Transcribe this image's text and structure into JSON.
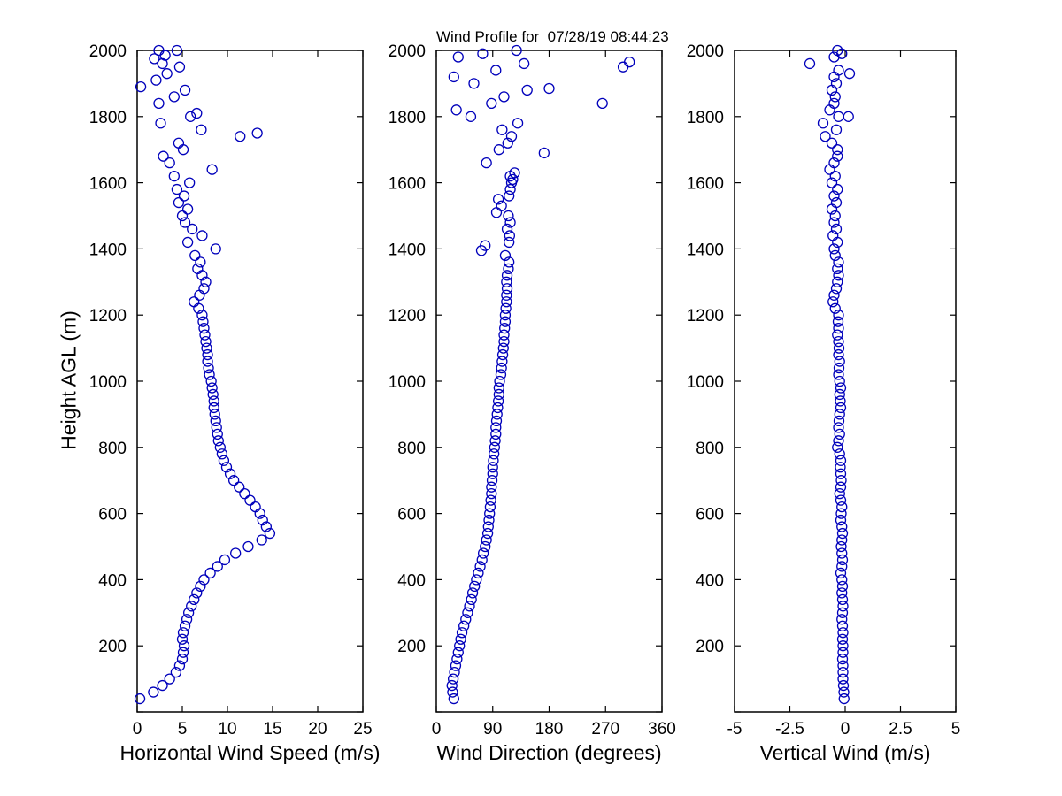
{
  "figure": {
    "title": "Wind Profile for  07/28/19 08:44:23"
  },
  "chart_data": [
    {
      "type": "scatter",
      "title": "",
      "xlabel": "Horizontal Wind Speed (m/s)",
      "ylabel": "Height AGL (m)",
      "xlim": [
        0,
        25
      ],
      "xticks": [
        0,
        5,
        10,
        15,
        20,
        25
      ],
      "ylim": [
        0,
        2000
      ],
      "yticks": [
        0,
        200,
        400,
        600,
        800,
        1000,
        1200,
        1400,
        1600,
        1800,
        2000
      ],
      "grid": false,
      "legend": null,
      "marker": "open-circle",
      "marker_color": "#0000BB",
      "points": [
        [
          0.3,
          40
        ],
        [
          1.8,
          60
        ],
        [
          2.8,
          80
        ],
        [
          3.6,
          100
        ],
        [
          4.3,
          120
        ],
        [
          4.7,
          140
        ],
        [
          5.0,
          160
        ],
        [
          5.1,
          180
        ],
        [
          5.2,
          200
        ],
        [
          5.0,
          220
        ],
        [
          5.1,
          240
        ],
        [
          5.3,
          260
        ],
        [
          5.5,
          280
        ],
        [
          5.7,
          300
        ],
        [
          6.0,
          320
        ],
        [
          6.3,
          340
        ],
        [
          6.6,
          360
        ],
        [
          7.0,
          380
        ],
        [
          7.4,
          400
        ],
        [
          8.1,
          420
        ],
        [
          8.9,
          440
        ],
        [
          9.7,
          460
        ],
        [
          10.9,
          480
        ],
        [
          12.3,
          500
        ],
        [
          13.8,
          520
        ],
        [
          14.7,
          540
        ],
        [
          14.3,
          560
        ],
        [
          13.9,
          580
        ],
        [
          13.6,
          600
        ],
        [
          13.1,
          620
        ],
        [
          12.5,
          640
        ],
        [
          11.9,
          660
        ],
        [
          11.3,
          680
        ],
        [
          10.7,
          700
        ],
        [
          10.3,
          720
        ],
        [
          9.9,
          740
        ],
        [
          9.6,
          760
        ],
        [
          9.4,
          780
        ],
        [
          9.2,
          800
        ],
        [
          9.0,
          820
        ],
        [
          8.9,
          840
        ],
        [
          8.8,
          860
        ],
        [
          8.7,
          880
        ],
        [
          8.6,
          900
        ],
        [
          8.5,
          920
        ],
        [
          8.5,
          940
        ],
        [
          8.4,
          960
        ],
        [
          8.3,
          980
        ],
        [
          8.2,
          1000
        ],
        [
          8.0,
          1020
        ],
        [
          7.9,
          1040
        ],
        [
          7.8,
          1060
        ],
        [
          7.8,
          1080
        ],
        [
          7.7,
          1100
        ],
        [
          7.6,
          1120
        ],
        [
          7.5,
          1140
        ],
        [
          7.4,
          1160
        ],
        [
          7.3,
          1180
        ],
        [
          7.2,
          1200
        ],
        [
          6.8,
          1220
        ],
        [
          6.3,
          1240
        ],
        [
          6.9,
          1260
        ],
        [
          7.4,
          1280
        ],
        [
          7.6,
          1300
        ],
        [
          7.2,
          1320
        ],
        [
          6.7,
          1340
        ],
        [
          7.0,
          1360
        ],
        [
          6.4,
          1380
        ],
        [
          8.7,
          1400
        ],
        [
          5.6,
          1420
        ],
        [
          7.2,
          1440
        ],
        [
          6.1,
          1460
        ],
        [
          5.3,
          1480
        ],
        [
          5.0,
          1500
        ],
        [
          5.6,
          1520
        ],
        [
          4.6,
          1540
        ],
        [
          5.2,
          1560
        ],
        [
          4.4,
          1580
        ],
        [
          5.8,
          1600
        ],
        [
          4.1,
          1620
        ],
        [
          8.3,
          1640
        ],
        [
          3.6,
          1660
        ],
        [
          2.9,
          1680
        ],
        [
          5.1,
          1700
        ],
        [
          4.6,
          1720
        ],
        [
          11.4,
          1740
        ],
        [
          13.3,
          1750
        ],
        [
          7.1,
          1760
        ],
        [
          2.6,
          1780
        ],
        [
          5.9,
          1800
        ],
        [
          6.6,
          1810
        ],
        [
          2.4,
          1840
        ],
        [
          4.1,
          1860
        ],
        [
          5.3,
          1880
        ],
        [
          0.4,
          1890
        ],
        [
          2.1,
          1910
        ],
        [
          3.3,
          1930
        ],
        [
          4.7,
          1950
        ],
        [
          2.8,
          1960
        ],
        [
          1.9,
          1975
        ],
        [
          3.1,
          1985
        ],
        [
          4.4,
          2000
        ],
        [
          2.4,
          2000
        ]
      ]
    },
    {
      "type": "scatter",
      "title": "",
      "xlabel": "Wind Direction (degrees)",
      "ylabel": "",
      "xlim": [
        0,
        360
      ],
      "xticks": [
        0,
        90,
        180,
        270,
        360
      ],
      "ylim": [
        0,
        2000
      ],
      "yticks": [
        0,
        200,
        400,
        600,
        800,
        1000,
        1200,
        1400,
        1600,
        1800,
        2000
      ],
      "grid": false,
      "legend": null,
      "marker": "open-circle",
      "marker_color": "#0000BB",
      "points": [
        [
          28,
          40
        ],
        [
          26,
          60
        ],
        [
          25,
          80
        ],
        [
          27,
          100
        ],
        [
          29,
          120
        ],
        [
          31,
          140
        ],
        [
          33,
          160
        ],
        [
          35,
          180
        ],
        [
          37,
          200
        ],
        [
          39,
          220
        ],
        [
          41,
          240
        ],
        [
          44,
          260
        ],
        [
          47,
          280
        ],
        [
          50,
          300
        ],
        [
          53,
          320
        ],
        [
          56,
          340
        ],
        [
          58,
          360
        ],
        [
          61,
          380
        ],
        [
          64,
          400
        ],
        [
          67,
          420
        ],
        [
          70,
          440
        ],
        [
          73,
          460
        ],
        [
          75,
          480
        ],
        [
          78,
          500
        ],
        [
          80,
          520
        ],
        [
          82,
          540
        ],
        [
          83,
          560
        ],
        [
          84,
          580
        ],
        [
          85,
          600
        ],
        [
          86,
          620
        ],
        [
          87,
          640
        ],
        [
          88,
          660
        ],
        [
          88,
          680
        ],
        [
          89,
          700
        ],
        [
          90,
          720
        ],
        [
          90,
          740
        ],
        [
          91,
          760
        ],
        [
          92,
          780
        ],
        [
          93,
          800
        ],
        [
          94,
          820
        ],
        [
          95,
          840
        ],
        [
          95,
          860
        ],
        [
          96,
          880
        ],
        [
          97,
          900
        ],
        [
          98,
          920
        ],
        [
          99,
          940
        ],
        [
          100,
          960
        ],
        [
          100,
          980
        ],
        [
          101,
          1000
        ],
        [
          103,
          1020
        ],
        [
          104,
          1040
        ],
        [
          105,
          1060
        ],
        [
          106,
          1080
        ],
        [
          107,
          1100
        ],
        [
          108,
          1120
        ],
        [
          108,
          1140
        ],
        [
          109,
          1160
        ],
        [
          110,
          1180
        ],
        [
          110,
          1200
        ],
        [
          111,
          1220
        ],
        [
          112,
          1240
        ],
        [
          112,
          1260
        ],
        [
          113,
          1280
        ],
        [
          112,
          1300
        ],
        [
          113,
          1320
        ],
        [
          115,
          1340
        ],
        [
          116,
          1360
        ],
        [
          110,
          1380
        ],
        [
          72,
          1395
        ],
        [
          78,
          1410
        ],
        [
          116,
          1420
        ],
        [
          117,
          1440
        ],
        [
          113,
          1460
        ],
        [
          118,
          1480
        ],
        [
          115,
          1500
        ],
        [
          96,
          1510
        ],
        [
          104,
          1530
        ],
        [
          99,
          1550
        ],
        [
          116,
          1560
        ],
        [
          118,
          1580
        ],
        [
          120,
          1600
        ],
        [
          122,
          1610
        ],
        [
          118,
          1620
        ],
        [
          125,
          1630
        ],
        [
          80,
          1660
        ],
        [
          172,
          1690
        ],
        [
          100,
          1700
        ],
        [
          114,
          1720
        ],
        [
          120,
          1740
        ],
        [
          105,
          1760
        ],
        [
          130,
          1780
        ],
        [
          55,
          1800
        ],
        [
          32,
          1820
        ],
        [
          88,
          1840
        ],
        [
          265,
          1840
        ],
        [
          108,
          1860
        ],
        [
          145,
          1880
        ],
        [
          180,
          1885
        ],
        [
          60,
          1900
        ],
        [
          28,
          1920
        ],
        [
          95,
          1940
        ],
        [
          298,
          1950
        ],
        [
          140,
          1960
        ],
        [
          308,
          1965
        ],
        [
          35,
          1980
        ],
        [
          74,
          1990
        ],
        [
          128,
          2000
        ]
      ]
    },
    {
      "type": "scatter",
      "title": "",
      "xlabel": "Vertical Wind (m/s)",
      "ylabel": "",
      "xlim": [
        -5,
        5
      ],
      "xticks": [
        -5,
        -2.5,
        0,
        2.5,
        5
      ],
      "ylim": [
        0,
        2000
      ],
      "yticks": [
        0,
        200,
        400,
        600,
        800,
        1000,
        1200,
        1400,
        1600,
        1800,
        2000
      ],
      "grid": false,
      "legend": null,
      "marker": "open-circle",
      "marker_color": "#0000BB",
      "points": [
        [
          -0.05,
          40
        ],
        [
          -0.06,
          60
        ],
        [
          -0.08,
          80
        ],
        [
          -0.1,
          100
        ],
        [
          -0.1,
          120
        ],
        [
          -0.1,
          140
        ],
        [
          -0.12,
          160
        ],
        [
          -0.1,
          180
        ],
        [
          -0.1,
          200
        ],
        [
          -0.12,
          220
        ],
        [
          -0.1,
          240
        ],
        [
          -0.12,
          260
        ],
        [
          -0.15,
          280
        ],
        [
          -0.12,
          300
        ],
        [
          -0.1,
          320
        ],
        [
          -0.12,
          340
        ],
        [
          -0.15,
          360
        ],
        [
          -0.12,
          380
        ],
        [
          -0.15,
          400
        ],
        [
          -0.2,
          420
        ],
        [
          -0.15,
          440
        ],
        [
          -0.12,
          460
        ],
        [
          -0.15,
          480
        ],
        [
          -0.18,
          500
        ],
        [
          -0.15,
          520
        ],
        [
          -0.12,
          540
        ],
        [
          -0.15,
          560
        ],
        [
          -0.2,
          580
        ],
        [
          -0.18,
          600
        ],
        [
          -0.15,
          620
        ],
        [
          -0.2,
          640
        ],
        [
          -0.25,
          660
        ],
        [
          -0.2,
          680
        ],
        [
          -0.18,
          700
        ],
        [
          -0.2,
          720
        ],
        [
          -0.22,
          740
        ],
        [
          -0.2,
          760
        ],
        [
          -0.25,
          780
        ],
        [
          -0.35,
          800
        ],
        [
          -0.3,
          820
        ],
        [
          -0.25,
          840
        ],
        [
          -0.3,
          860
        ],
        [
          -0.28,
          880
        ],
        [
          -0.25,
          900
        ],
        [
          -0.2,
          920
        ],
        [
          -0.22,
          940
        ],
        [
          -0.25,
          960
        ],
        [
          -0.2,
          980
        ],
        [
          -0.25,
          1000
        ],
        [
          -0.3,
          1020
        ],
        [
          -0.28,
          1040
        ],
        [
          -0.25,
          1060
        ],
        [
          -0.3,
          1080
        ],
        [
          -0.28,
          1100
        ],
        [
          -0.3,
          1120
        ],
        [
          -0.35,
          1140
        ],
        [
          -0.3,
          1160
        ],
        [
          -0.32,
          1180
        ],
        [
          -0.3,
          1200
        ],
        [
          -0.45,
          1220
        ],
        [
          -0.55,
          1240
        ],
        [
          -0.5,
          1260
        ],
        [
          -0.4,
          1280
        ],
        [
          -0.35,
          1300
        ],
        [
          -0.3,
          1320
        ],
        [
          -0.35,
          1340
        ],
        [
          -0.3,
          1360
        ],
        [
          -0.45,
          1380
        ],
        [
          -0.5,
          1400
        ],
        [
          -0.35,
          1420
        ],
        [
          -0.55,
          1440
        ],
        [
          -0.4,
          1460
        ],
        [
          -0.5,
          1480
        ],
        [
          -0.45,
          1500
        ],
        [
          -0.6,
          1520
        ],
        [
          -0.4,
          1540
        ],
        [
          -0.5,
          1560
        ],
        [
          -0.35,
          1580
        ],
        [
          -0.6,
          1600
        ],
        [
          -0.45,
          1620
        ],
        [
          -0.7,
          1640
        ],
        [
          -0.5,
          1660
        ],
        [
          -0.35,
          1680
        ],
        [
          -0.35,
          1700
        ],
        [
          -0.6,
          1720
        ],
        [
          -0.9,
          1740
        ],
        [
          -0.4,
          1760
        ],
        [
          -1.0,
          1780
        ],
        [
          -0.3,
          1800
        ],
        [
          0.15,
          1800
        ],
        [
          -0.7,
          1820
        ],
        [
          -0.5,
          1840
        ],
        [
          -0.45,
          1860
        ],
        [
          -0.6,
          1880
        ],
        [
          -0.4,
          1900
        ],
        [
          -0.5,
          1920
        ],
        [
          0.2,
          1930
        ],
        [
          -0.3,
          1940
        ],
        [
          -1.6,
          1960
        ],
        [
          -0.5,
          1980
        ],
        [
          -0.15,
          1990
        ],
        [
          -0.35,
          2000
        ]
      ]
    }
  ]
}
